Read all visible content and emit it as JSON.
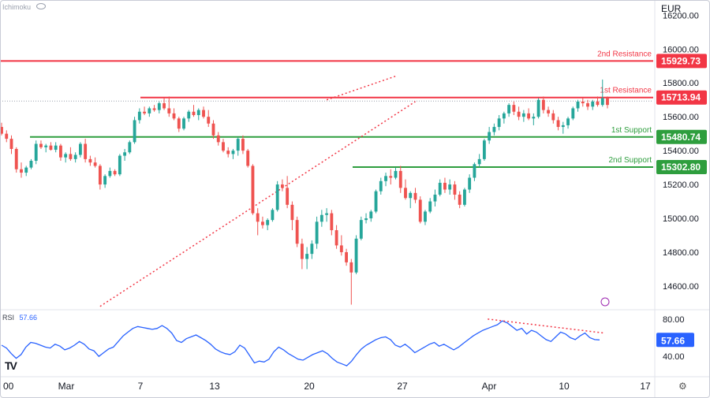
{
  "header": {
    "indicator_label": "Ichimoku",
    "currency": "EUR"
  },
  "colors": {
    "up": "#26a69a",
    "down": "#ef5350",
    "resistance": "#f23645",
    "support": "#2e9e3e",
    "rsi_line": "#2962ff",
    "trend_dotted": "#f23645"
  },
  "chart_data": [
    {
      "type": "candlestick",
      "title": "",
      "y_axis": {
        "ticks": [
          "16200.00",
          "16000.00",
          "15800.00",
          "15600.00",
          "15400.00",
          "15200.00",
          "15000.00",
          "14800.00",
          "14600.00"
        ],
        "tick_values": [
          16200,
          16000,
          15800,
          15600,
          15400,
          15200,
          15000,
          14800,
          14600
        ],
        "range": [
          14460,
          16290
        ]
      },
      "x_axis": {
        "labels": [
          "00",
          "Mar",
          "7",
          "13",
          "20",
          "27",
          "Apr",
          "10",
          "17"
        ]
      },
      "levels": [
        {
          "name": "2nd Resistance",
          "value": 15929.73,
          "label": "15929.73",
          "kind": "resistance"
        },
        {
          "name": "1st Resistance",
          "value": 15713.94,
          "label": "15713.94",
          "kind": "resistance"
        },
        {
          "name": "1st Support",
          "value": 15480.74,
          "label": "15480.74",
          "kind": "support"
        },
        {
          "name": "2nd Support",
          "value": 15302.8,
          "label": "15302.80",
          "kind": "support"
        }
      ],
      "trendlines": [
        {
          "from": [
            20,
            14480
          ],
          "to": [
            84,
            15690
          ],
          "style": "dotted"
        },
        {
          "from": [
            66,
            15700
          ],
          "to": [
            80,
            15840
          ],
          "style": "dotted"
        }
      ],
      "candles_ohlc": [
        [
          15540,
          15565,
          15490,
          15500
        ],
        [
          15500,
          15520,
          15450,
          15470
        ],
        [
          15470,
          15490,
          15380,
          15410
        ],
        [
          15410,
          15420,
          15270,
          15290
        ],
        [
          15290,
          15330,
          15240,
          15270
        ],
        [
          15270,
          15310,
          15250,
          15300
        ],
        [
          15300,
          15350,
          15290,
          15340
        ],
        [
          15340,
          15460,
          15320,
          15440
        ],
        [
          15440,
          15460,
          15410,
          15420
        ],
        [
          15420,
          15440,
          15390,
          15430
        ],
        [
          15430,
          15450,
          15400,
          15405
        ],
        [
          15405,
          15450,
          15390,
          15430
        ],
        [
          15430,
          15440,
          15340,
          15360
        ],
        [
          15360,
          15390,
          15330,
          15380
        ],
        [
          15380,
          15420,
          15340,
          15350
        ],
        [
          15350,
          15390,
          15330,
          15375
        ],
        [
          15375,
          15450,
          15360,
          15440
        ],
        [
          15440,
          15470,
          15330,
          15350
        ],
        [
          15350,
          15370,
          15310,
          15330
        ],
        [
          15330,
          15360,
          15300,
          15310
        ],
        [
          15310,
          15320,
          15170,
          15200
        ],
        [
          15200,
          15260,
          15180,
          15250
        ],
        [
          15250,
          15300,
          15240,
          15280
        ],
        [
          15280,
          15290,
          15250,
          15260
        ],
        [
          15260,
          15380,
          15250,
          15370
        ],
        [
          15370,
          15410,
          15340,
          15390
        ],
        [
          15390,
          15460,
          15380,
          15450
        ],
        [
          15450,
          15600,
          15440,
          15580
        ],
        [
          15580,
          15650,
          15560,
          15630
        ],
        [
          15630,
          15660,
          15610,
          15620
        ],
        [
          15620,
          15660,
          15600,
          15650
        ],
        [
          15650,
          15670,
          15630,
          15640
        ],
        [
          15640,
          15690,
          15620,
          15680
        ],
        [
          15680,
          15710,
          15640,
          15650
        ],
        [
          15650,
          15720,
          15600,
          15620
        ],
        [
          15620,
          15650,
          15580,
          15590
        ],
        [
          15590,
          15600,
          15510,
          15530
        ],
        [
          15530,
          15600,
          15520,
          15590
        ],
        [
          15590,
          15640,
          15570,
          15630
        ],
        [
          15630,
          15670,
          15600,
          15610
        ],
        [
          15610,
          15650,
          15580,
          15640
        ],
        [
          15640,
          15660,
          15590,
          15600
        ],
        [
          15600,
          15640,
          15540,
          15560
        ],
        [
          15560,
          15580,
          15470,
          15490
        ],
        [
          15490,
          15510,
          15430,
          15450
        ],
        [
          15450,
          15470,
          15390,
          15400
        ],
        [
          15400,
          15420,
          15360,
          15380
        ],
        [
          15380,
          15410,
          15350,
          15400
        ],
        [
          15400,
          15480,
          15370,
          15470
        ],
        [
          15470,
          15490,
          15380,
          15400
        ],
        [
          15400,
          15410,
          15300,
          15310
        ],
        [
          15310,
          15320,
          15020,
          15030
        ],
        [
          15030,
          15060,
          14900,
          14980
        ],
        [
          14980,
          15010,
          14940,
          14960
        ],
        [
          14960,
          15000,
          14930,
          14990
        ],
        [
          14990,
          15060,
          14980,
          15050
        ],
        [
          15050,
          15220,
          15040,
          15200
        ],
        [
          15200,
          15230,
          15160,
          15180
        ],
        [
          15180,
          15250,
          15060,
          15080
        ],
        [
          15080,
          15100,
          14930,
          14990
        ],
        [
          14990,
          15010,
          14830,
          14850
        ],
        [
          14850,
          14880,
          14700,
          14760
        ],
        [
          14760,
          14830,
          14700,
          14790
        ],
        [
          14790,
          14870,
          14760,
          14850
        ],
        [
          14850,
          15010,
          14820,
          14980
        ],
        [
          14980,
          15050,
          14950,
          15020
        ],
        [
          15020,
          15060,
          14980,
          15030
        ],
        [
          15030,
          15050,
          14900,
          14930
        ],
        [
          14930,
          14960,
          14820,
          14840
        ],
        [
          14840,
          14900,
          14780,
          14800
        ],
        [
          14800,
          14820,
          14720,
          14740
        ],
        [
          14740,
          14760,
          14490,
          14680
        ],
        [
          14680,
          14900,
          14670,
          14880
        ],
        [
          14880,
          15010,
          14870,
          14990
        ],
        [
          14990,
          15030,
          14970,
          15000
        ],
        [
          15000,
          15050,
          14980,
          15040
        ],
        [
          15040,
          15170,
          15030,
          15160
        ],
        [
          15160,
          15240,
          15140,
          15220
        ],
        [
          15220,
          15270,
          15190,
          15250
        ],
        [
          15250,
          15290,
          15200,
          15240
        ],
        [
          15240,
          15300,
          15230,
          15280
        ],
        [
          15280,
          15310,
          15150,
          15180
        ],
        [
          15180,
          15230,
          15110,
          15120
        ],
        [
          15120,
          15160,
          15060,
          15150
        ],
        [
          15150,
          15180,
          15090,
          15110
        ],
        [
          15110,
          15130,
          14970,
          14980
        ],
        [
          14980,
          15050,
          14960,
          15040
        ],
        [
          15040,
          15120,
          15030,
          15100
        ],
        [
          15100,
          15170,
          15070,
          15140
        ],
        [
          15140,
          15230,
          15130,
          15210
        ],
        [
          15210,
          15240,
          15150,
          15170
        ],
        [
          15170,
          15230,
          15140,
          15200
        ],
        [
          15200,
          15220,
          15110,
          15140
        ],
        [
          15140,
          15160,
          15060,
          15080
        ],
        [
          15080,
          15180,
          15070,
          15170
        ],
        [
          15170,
          15260,
          15150,
          15240
        ],
        [
          15240,
          15330,
          15220,
          15320
        ],
        [
          15320,
          15380,
          15300,
          15350
        ],
        [
          15350,
          15470,
          15340,
          15460
        ],
        [
          15460,
          15540,
          15440,
          15510
        ],
        [
          15510,
          15560,
          15490,
          15540
        ],
        [
          15540,
          15610,
          15520,
          15590
        ],
        [
          15590,
          15630,
          15560,
          15620
        ],
        [
          15620,
          15680,
          15600,
          15670
        ],
        [
          15670,
          15690,
          15610,
          15630
        ],
        [
          15630,
          15660,
          15580,
          15600
        ],
        [
          15600,
          15640,
          15570,
          15620
        ],
        [
          15620,
          15650,
          15580,
          15590
        ],
        [
          15590,
          15620,
          15550,
          15600
        ],
        [
          15600,
          15710,
          15590,
          15700
        ],
        [
          15700,
          15720,
          15620,
          15640
        ],
        [
          15640,
          15660,
          15600,
          15620
        ],
        [
          15620,
          15640,
          15560,
          15580
        ],
        [
          15580,
          15600,
          15520,
          15540
        ],
        [
          15540,
          15570,
          15500,
          15550
        ],
        [
          15550,
          15600,
          15530,
          15590
        ],
        [
          15590,
          15660,
          15580,
          15650
        ],
        [
          15650,
          15700,
          15630,
          15690
        ],
        [
          15690,
          15710,
          15660,
          15680
        ],
        [
          15680,
          15700,
          15640,
          15660
        ],
        [
          15660,
          15700,
          15640,
          15690
        ],
        [
          15690,
          15720,
          15660,
          15670
        ],
        [
          15670,
          15820,
          15660,
          15710
        ],
        [
          15710,
          15720,
          15650,
          15670
        ]
      ]
    },
    {
      "type": "line",
      "name": "RSI",
      "series": [
        {
          "name": "RSI",
          "value_label": "57.66"
        }
      ],
      "y_axis": {
        "ticks": [
          "80.00",
          "40.00"
        ],
        "tick_values": [
          80,
          40
        ],
        "range": [
          25,
          90
        ]
      },
      "current": 57.66,
      "values": [
        52,
        49,
        43,
        38,
        42,
        50,
        55,
        54,
        52,
        50,
        49,
        53,
        51,
        47,
        49,
        52,
        56,
        53,
        48,
        46,
        40,
        44,
        48,
        50,
        56,
        62,
        66,
        70,
        72,
        71,
        70,
        69,
        70,
        73,
        70,
        65,
        57,
        55,
        59,
        61,
        63,
        60,
        57,
        53,
        48,
        45,
        43,
        42,
        45,
        52,
        49,
        41,
        33,
        35,
        34,
        37,
        45,
        50,
        47,
        43,
        40,
        37,
        36,
        39,
        42,
        44,
        46,
        43,
        38,
        34,
        32,
        30,
        35,
        42,
        48,
        52,
        55,
        58,
        60,
        61,
        58,
        52,
        50,
        53,
        49,
        44,
        47,
        50,
        53,
        55,
        51,
        53,
        50,
        47,
        50,
        54,
        58,
        62,
        65,
        68,
        70,
        72,
        74,
        78,
        76,
        72,
        68,
        70,
        64,
        68,
        66,
        62,
        58,
        56,
        61,
        66,
        64,
        60,
        58,
        62,
        65,
        60,
        58,
        57.66
      ],
      "trendlines": [
        {
          "from": [
            100,
            80
          ],
          "to": [
            124,
            65
          ],
          "style": "dotted"
        }
      ]
    }
  ],
  "footer": {
    "logo": "TV"
  }
}
